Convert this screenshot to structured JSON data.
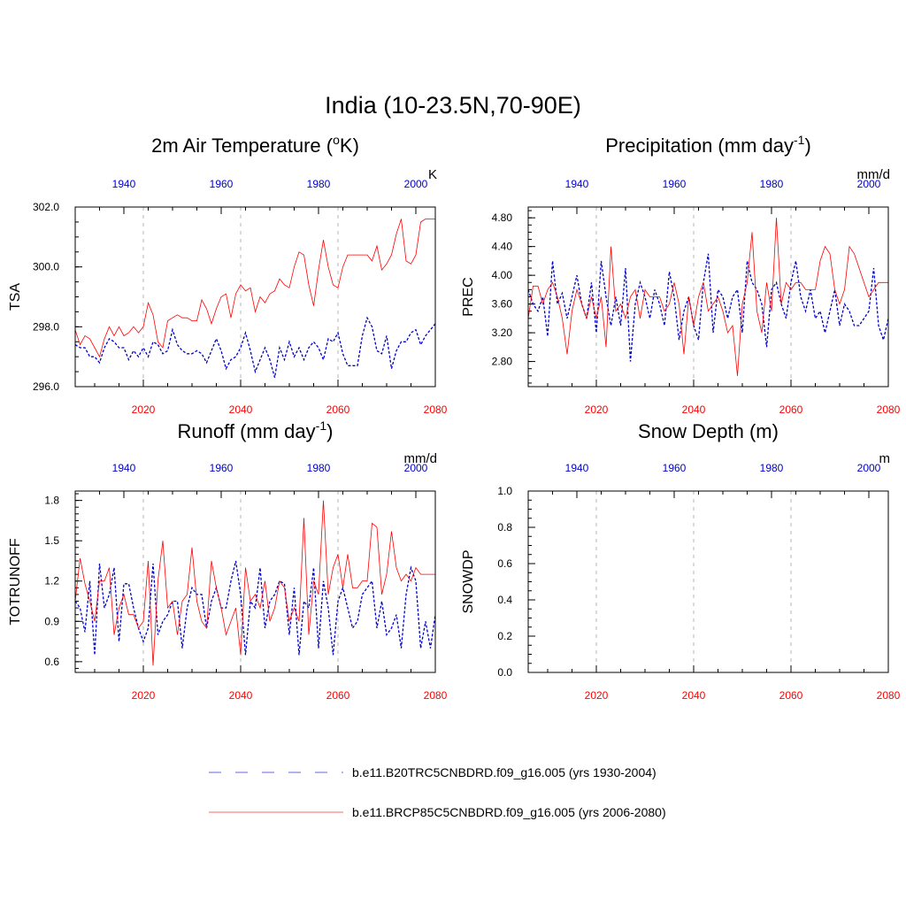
{
  "title": "India (10-23.5N,70-90E)",
  "colors": {
    "historical": "#0000cc",
    "future": "#ff0000",
    "grid": "#b4b4b4",
    "frame": "#000000"
  },
  "chart_data": [
    {
      "type": "line",
      "id": "tsa",
      "title_pre": "2m Air Temperature (",
      "title_sup": "o",
      "title_post": "K)",
      "ylabel": "TSA",
      "units": "K",
      "ylim": [
        296.0,
        302.0
      ],
      "yticks": [
        296.0,
        298.0,
        300.0,
        302.0
      ],
      "ytick_labels": [
        "296.0",
        "298.0",
        "300.0",
        "302.0"
      ],
      "yminor": 0.5,
      "x_bottom_ticks": [
        "2020",
        "2040",
        "2060",
        "2080"
      ],
      "x_top_ticks": [
        "1940",
        "1960",
        "1980",
        "2000"
      ],
      "series": [
        {
          "name": "historical",
          "axis": "top",
          "start": 1930,
          "values": [
            297.4,
            297.3,
            297.3,
            297.0,
            297.0,
            296.8,
            297.3,
            297.6,
            297.5,
            297.3,
            297.3,
            296.9,
            297.2,
            297.0,
            297.3,
            297.0,
            297.5,
            297.4,
            297.1,
            297.2,
            297.9,
            297.4,
            297.2,
            297.1,
            297.1,
            297.2,
            297.1,
            296.8,
            297.2,
            297.6,
            297.2,
            296.6,
            296.9,
            297.0,
            297.3,
            297.8,
            297.2,
            296.5,
            296.9,
            297.3,
            296.9,
            296.3,
            297.3,
            296.9,
            297.5,
            297.0,
            297.3,
            296.9,
            297.3,
            297.5,
            297.3,
            296.9,
            297.6,
            297.5,
            297.8,
            297.1,
            296.7,
            296.7,
            296.7,
            297.7,
            298.3,
            298.0,
            297.2,
            297.1,
            297.7,
            296.6,
            297.2,
            297.5,
            297.5,
            297.8,
            297.9,
            297.4,
            297.7,
            297.9,
            298.1
          ]
        },
        {
          "name": "future",
          "axis": "bottom",
          "start": 2006,
          "values": [
            297.9,
            297.4,
            297.7,
            297.6,
            297.3,
            297.0,
            297.6,
            298.0,
            297.7,
            298.0,
            297.7,
            297.8,
            298.0,
            297.8,
            298.0,
            298.8,
            298.4,
            297.5,
            297.3,
            298.2,
            298.3,
            298.4,
            298.3,
            298.3,
            298.2,
            298.2,
            298.9,
            298.6,
            298.1,
            298.6,
            299.0,
            299.1,
            298.3,
            299.1,
            299.4,
            299.2,
            299.3,
            298.5,
            299.0,
            298.8,
            299.1,
            299.2,
            299.6,
            299.4,
            299.3,
            300.0,
            300.5,
            300.4,
            299.4,
            298.7,
            299.9,
            300.9,
            300.0,
            299.4,
            299.3,
            300.0,
            300.4,
            300.4,
            300.4,
            300.4,
            300.4,
            300.2,
            300.7,
            299.9,
            300.1,
            300.4,
            301.1,
            301.6,
            300.2,
            300.1,
            300.4,
            301.5,
            301.6,
            301.6,
            301.6
          ]
        }
      ]
    },
    {
      "type": "line",
      "id": "prec",
      "title_pre": "Precipitation (mm day",
      "title_sup": "-1",
      "title_post": ")",
      "ylabel": "PREC",
      "units": "mm/d",
      "ylim": [
        2.45,
        4.95
      ],
      "yticks": [
        2.8,
        3.2,
        3.6,
        4.0,
        4.4,
        4.8
      ],
      "ytick_labels": [
        "2.80",
        "3.20",
        "3.60",
        "4.00",
        "4.40",
        "4.80"
      ],
      "yminor": 0.1,
      "x_bottom_ticks": [
        "2020",
        "2040",
        "2060",
        "2080"
      ],
      "x_top_ticks": [
        "1940",
        "1960",
        "1980",
        "2000"
      ],
      "series": [
        {
          "name": "historical",
          "axis": "top",
          "start": 1930,
          "values": [
            3.8,
            3.6,
            3.5,
            3.7,
            3.15,
            4.2,
            3.6,
            3.75,
            3.4,
            3.7,
            4.0,
            3.6,
            3.4,
            3.9,
            3.2,
            4.2,
            3.7,
            3.3,
            3.7,
            3.3,
            4.1,
            2.8,
            3.6,
            3.9,
            3.7,
            3.4,
            3.8,
            3.6,
            3.3,
            4.05,
            3.7,
            3.1,
            3.5,
            3.7,
            3.3,
            3.1,
            3.9,
            4.3,
            3.2,
            3.8,
            3.7,
            3.4,
            3.7,
            3.8,
            3.2,
            4.2,
            3.9,
            3.8,
            3.6,
            3.0,
            3.8,
            3.9,
            3.6,
            3.4,
            3.9,
            4.2,
            3.7,
            3.5,
            3.8,
            3.4,
            3.5,
            3.2,
            3.5,
            3.8,
            3.3,
            3.6,
            3.5,
            3.3,
            3.3,
            3.4,
            3.5,
            4.1,
            3.3,
            3.1,
            3.4
          ]
        },
        {
          "name": "future",
          "axis": "bottom",
          "start": 2006,
          "values": [
            3.4,
            3.85,
            3.85,
            3.6,
            3.8,
            3.9,
            3.7,
            3.4,
            2.9,
            3.5,
            3.8,
            3.6,
            3.4,
            3.7,
            3.4,
            3.7,
            3.0,
            4.4,
            3.5,
            3.6,
            3.4,
            3.7,
            3.8,
            3.4,
            3.8,
            3.7,
            3.7,
            3.7,
            3.5,
            3.6,
            3.9,
            3.6,
            2.9,
            3.7,
            3.3,
            3.7,
            3.9,
            3.5,
            3.6,
            3.7,
            3.5,
            3.2,
            3.3,
            2.6,
            3.6,
            3.9,
            4.6,
            3.5,
            3.2,
            3.9,
            3.5,
            4.8,
            3.6,
            3.9,
            3.8,
            3.9,
            3.9,
            3.8,
            3.8,
            3.8,
            4.2,
            4.4,
            4.3,
            3.8,
            3.6,
            3.8,
            4.4,
            4.3,
            4.1,
            3.9,
            3.7,
            3.8,
            3.9,
            3.9,
            3.9
          ]
        }
      ]
    },
    {
      "type": "line",
      "id": "runoff",
      "title_pre": "Runoff (mm day",
      "title_sup": "-1",
      "title_post": ")",
      "ylabel": "TOTRUNOFF",
      "units": "mm/d",
      "ylim": [
        0.52,
        1.87
      ],
      "yticks": [
        0.6,
        0.9,
        1.2,
        1.5,
        1.8
      ],
      "ytick_labels": [
        "0.6",
        "0.9",
        "1.2",
        "1.5",
        "1.8"
      ],
      "yminor": 0.05,
      "x_bottom_ticks": [
        "2020",
        "2040",
        "2060",
        "2080"
      ],
      "x_top_ticks": [
        "1940",
        "1960",
        "1980",
        "2000"
      ],
      "series": [
        {
          "name": "historical",
          "axis": "top",
          "start": 1930,
          "values": [
            1.05,
            1.0,
            0.82,
            1.2,
            0.65,
            1.33,
            1.0,
            1.1,
            1.3,
            0.75,
            1.18,
            1.18,
            1.0,
            0.85,
            0.75,
            0.85,
            1.33,
            0.8,
            0.9,
            0.95,
            1.05,
            1.05,
            0.7,
            1.0,
            1.15,
            1.1,
            1.1,
            0.85,
            1.05,
            1.15,
            1.0,
            1.0,
            1.2,
            1.35,
            1.1,
            0.65,
            1.05,
            1.0,
            1.3,
            0.85,
            1.05,
            1.1,
            1.2,
            1.18,
            0.8,
            1.15,
            0.65,
            1.05,
            1.0,
            1.3,
            0.7,
            1.2,
            1.0,
            0.65,
            1.05,
            1.15,
            1.0,
            0.85,
            0.9,
            1.1,
            1.15,
            1.2,
            0.85,
            1.05,
            0.8,
            0.85,
            0.95,
            0.7,
            1.1,
            1.3,
            1.2,
            0.7,
            0.9,
            0.7,
            0.95
          ]
        },
        {
          "name": "future",
          "axis": "bottom",
          "start": 2006,
          "values": [
            1.05,
            1.37,
            1.18,
            1.05,
            0.9,
            1.2,
            1.2,
            1.3,
            0.8,
            1.0,
            1.1,
            0.95,
            0.95,
            0.85,
            0.9,
            1.35,
            0.57,
            1.2,
            1.5,
            1.0,
            1.05,
            0.8,
            1.05,
            1.1,
            1.45,
            1.05,
            0.9,
            0.85,
            1.35,
            1.15,
            1.0,
            0.8,
            0.9,
            1.0,
            0.65,
            1.3,
            1.05,
            1.1,
            1.0,
            1.2,
            0.9,
            1.0,
            1.2,
            1.15,
            0.9,
            1.0,
            0.9,
            1.67,
            0.8,
            1.2,
            1.1,
            1.8,
            1.1,
            1.3,
            1.4,
            1.15,
            1.4,
            1.15,
            1.15,
            1.2,
            1.2,
            1.63,
            1.6,
            1.1,
            1.25,
            1.57,
            1.3,
            1.2,
            1.25,
            1.2,
            1.3,
            1.25,
            1.25,
            1.25,
            1.25
          ]
        }
      ]
    },
    {
      "type": "line",
      "id": "snowdp",
      "title_pre": "Snow Depth (m)",
      "title_sup": "",
      "title_post": "",
      "ylabel": "SNOWDP",
      "units": "m",
      "ylim": [
        0.0,
        1.0
      ],
      "yticks": [
        0.0,
        0.2,
        0.4,
        0.6,
        0.8,
        1.0
      ],
      "ytick_labels": [
        "0.0",
        "0.2",
        "0.4",
        "0.6",
        "0.8",
        "1.0"
      ],
      "yminor": 0.05,
      "x_bottom_ticks": [
        "2020",
        "2040",
        "2060",
        "2080"
      ],
      "x_top_ticks": [
        "1940",
        "1960",
        "1980",
        "2000"
      ],
      "series": []
    }
  ],
  "legend": [
    {
      "series": "historical",
      "label": "b.e11.B20TRC5CNBDRD.f09_g16.005 (yrs 1930-2004)"
    },
    {
      "series": "future",
      "label": "b.e11.BRCP85C5CNBDRD.f09_g16.005 (yrs 2006-2080)"
    }
  ]
}
